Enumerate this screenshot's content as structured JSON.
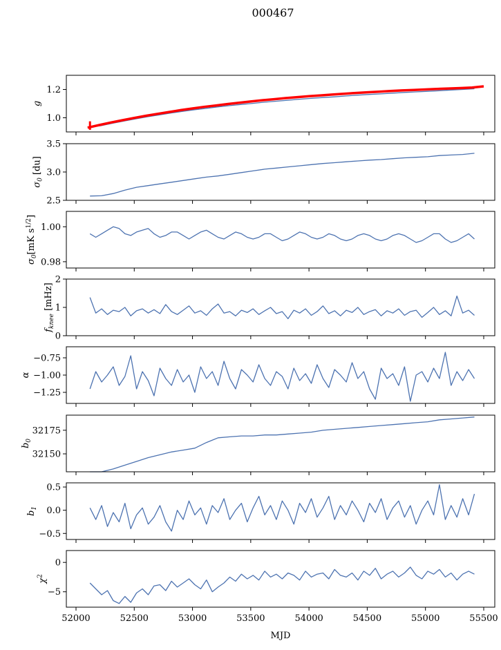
{
  "chart_data": {
    "type": "line",
    "title": "000467",
    "xlabel": "MJD",
    "xlim": [
      51917,
      55595
    ],
    "xticks": [
      52000,
      52500,
      53000,
      53500,
      54000,
      54500,
      55000,
      55500
    ],
    "xtick_labels": [
      "52000",
      "52500",
      "53000",
      "53500",
      "54000",
      "54500",
      "55000",
      "55500"
    ],
    "grid": false,
    "line_color": "#4c72b0",
    "model_color": "#ff0000",
    "smooth_x": {
      "start": 52120,
      "step": 100
    },
    "noisy_x": {
      "start": 52120,
      "step": 50
    },
    "panels": [
      {
        "id": "g",
        "ylabel": {
          "base": "g",
          "sub": "",
          "rest": "",
          "sup": "",
          "rest2": ""
        },
        "ylim": [
          0.9,
          1.3
        ],
        "yticks": [
          1.0,
          1.2
        ],
        "ytick_labels": [
          "1.0",
          "1.2"
        ],
        "x_kind": "smooth",
        "values": [
          0.935,
          0.945,
          0.962,
          0.978,
          0.993,
          1.008,
          1.021,
          1.034,
          1.046,
          1.057,
          1.067,
          1.077,
          1.086,
          1.094,
          1.102,
          1.11,
          1.117,
          1.124,
          1.131,
          1.137,
          1.143,
          1.148,
          1.154,
          1.16,
          1.165,
          1.169,
          1.174,
          1.179,
          1.183,
          1.187,
          1.191,
          1.196,
          1.2,
          1.205
        ],
        "model": {
          "name": "model",
          "x": {
            "start": 52100,
            "step": 100
          },
          "values": [
            0.93,
            0.949,
            0.967,
            0.983,
            0.999,
            1.014,
            1.028,
            1.041,
            1.054,
            1.066,
            1.077,
            1.087,
            1.097,
            1.106,
            1.115,
            1.124,
            1.131,
            1.139,
            1.146,
            1.152,
            1.158,
            1.164,
            1.17,
            1.175,
            1.18,
            1.184,
            1.189,
            1.193,
            1.196,
            1.2,
            1.204,
            1.207,
            1.21,
            1.213,
            1.222
          ],
          "errorbar": {
            "x": 52120,
            "low": 0.915,
            "high": 0.975
          }
        }
      },
      {
        "id": "sigma0-du",
        "ylabel": {
          "base": "σ",
          "sub": "0",
          "rest": " [du]",
          "sup": "",
          "rest2": ""
        },
        "ylim": [
          2.5,
          3.5
        ],
        "yticks": [
          2.5,
          3.0,
          3.5
        ],
        "ytick_labels": [
          "2.5",
          "3.0",
          "3.5"
        ],
        "x_kind": "smooth",
        "values": [
          2.575,
          2.58,
          2.62,
          2.68,
          2.73,
          2.76,
          2.79,
          2.82,
          2.85,
          2.88,
          2.91,
          2.93,
          2.96,
          2.99,
          3.02,
          3.05,
          3.07,
          3.09,
          3.11,
          3.13,
          3.15,
          3.165,
          3.18,
          3.195,
          3.21,
          3.22,
          3.235,
          3.25,
          3.26,
          3.27,
          3.29,
          3.3,
          3.31,
          3.33
        ]
      },
      {
        "id": "sigma0-mk",
        "ylabel": {
          "base": "σ",
          "sub": "0",
          "rest": "[mK s",
          "sup": "1/2",
          "rest2": "]"
        },
        "ylim": [
          0.9764,
          1.0088
        ],
        "yticks": [
          0.98,
          1.0
        ],
        "ytick_labels": [
          "0.98",
          "1.00"
        ],
        "x_kind": "noisy",
        "values": [
          0.996,
          0.994,
          0.996,
          0.998,
          1.0,
          0.999,
          0.996,
          0.995,
          0.997,
          0.998,
          0.999,
          0.996,
          0.994,
          0.995,
          0.997,
          0.997,
          0.995,
          0.993,
          0.995,
          0.997,
          0.998,
          0.996,
          0.994,
          0.993,
          0.995,
          0.997,
          0.996,
          0.994,
          0.993,
          0.994,
          0.996,
          0.996,
          0.994,
          0.992,
          0.993,
          0.995,
          0.997,
          0.996,
          0.994,
          0.993,
          0.994,
          0.996,
          0.995,
          0.993,
          0.992,
          0.993,
          0.995,
          0.996,
          0.995,
          0.993,
          0.992,
          0.993,
          0.995,
          0.996,
          0.995,
          0.993,
          0.991,
          0.992,
          0.994,
          0.996,
          0.996,
          0.993,
          0.991,
          0.992,
          0.994,
          0.996,
          0.993
        ]
      },
      {
        "id": "fknee",
        "ylabel": {
          "base": "f",
          "sub": "knee",
          "rest": " [mHz]",
          "sup": "",
          "rest2": ""
        },
        "ylim": [
          0,
          2
        ],
        "yticks": [
          0,
          1,
          2
        ],
        "ytick_labels": [
          "0",
          "1",
          "2"
        ],
        "x_kind": "noisy",
        "values": [
          1.35,
          0.8,
          0.95,
          0.75,
          0.9,
          0.85,
          1.0,
          0.7,
          0.88,
          0.95,
          0.8,
          0.92,
          0.78,
          1.1,
          0.85,
          0.75,
          0.9,
          1.05,
          0.8,
          0.88,
          0.72,
          0.95,
          1.12,
          0.8,
          0.85,
          0.7,
          0.9,
          0.82,
          0.95,
          0.75,
          0.88,
          1.0,
          0.78,
          0.85,
          0.6,
          0.9,
          0.8,
          0.95,
          0.72,
          0.85,
          1.05,
          0.78,
          0.88,
          0.7,
          0.9,
          0.82,
          1.0,
          0.75,
          0.85,
          0.92,
          0.7,
          0.88,
          0.8,
          0.95,
          0.72,
          0.85,
          0.9,
          0.65,
          0.82,
          1.0,
          0.75,
          0.88,
          0.7,
          1.4,
          0.8,
          0.9,
          0.72
        ]
      },
      {
        "id": "alpha",
        "ylabel": {
          "base": "α",
          "sub": "",
          "rest": "",
          "sup": "",
          "rest2": ""
        },
        "ylim": [
          -1.41,
          -0.59
        ],
        "yticks": [
          -1.25,
          -1.0,
          -0.75
        ],
        "ytick_labels": [
          "−1.25",
          "−1.00",
          "−0.75"
        ],
        "x_kind": "noisy",
        "values": [
          -1.2,
          -0.95,
          -1.1,
          -1.0,
          -0.88,
          -1.15,
          -1.02,
          -0.72,
          -1.2,
          -0.95,
          -1.08,
          -1.3,
          -0.9,
          -1.05,
          -1.15,
          -0.92,
          -1.1,
          -1.0,
          -1.25,
          -0.88,
          -1.05,
          -0.95,
          -1.15,
          -0.8,
          -1.05,
          -1.2,
          -0.92,
          -1.0,
          -1.1,
          -0.85,
          -1.05,
          -1.15,
          -0.95,
          -1.02,
          -1.2,
          -0.9,
          -1.08,
          -0.98,
          -1.12,
          -0.85,
          -1.05,
          -1.18,
          -0.92,
          -1.0,
          -1.1,
          -0.82,
          -1.05,
          -0.95,
          -1.2,
          -1.35,
          -0.9,
          -1.05,
          -0.98,
          -1.15,
          -0.88,
          -1.38,
          -1.0,
          -0.95,
          -1.1,
          -0.9,
          -1.05,
          -0.67,
          -1.15,
          -0.95,
          -1.08,
          -0.92,
          -1.05
        ]
      },
      {
        "id": "b0",
        "ylabel": {
          "base": "b",
          "sub": "0",
          "rest": "",
          "sup": "",
          "rest2": ""
        },
        "ylim": [
          32131,
          32191
        ],
        "yticks": [
          32150,
          32175
        ],
        "ytick_labels": [
          "32150",
          "32175"
        ],
        "x_kind": "smooth",
        "values": [
          32131,
          32131,
          32134,
          32138,
          32142,
          32146,
          32149,
          32152,
          32154,
          32156,
          32162,
          32167,
          32168,
          32169,
          32169,
          32170,
          32170,
          32171,
          32172,
          32173,
          32175,
          32176,
          32177,
          32178,
          32179,
          32180,
          32181,
          32182,
          32183,
          32184,
          32186,
          32187,
          32188,
          32189
        ]
      },
      {
        "id": "b1",
        "ylabel": {
          "base": "b",
          "sub": "1",
          "rest": "",
          "sup": "",
          "rest2": ""
        },
        "ylim": [
          -0.63,
          0.59
        ],
        "yticks": [
          -0.5,
          0.0,
          0.5
        ],
        "ytick_labels": [
          "−0.5",
          "0.0",
          "0.5"
        ],
        "x_kind": "noisy",
        "values": [
          0.05,
          -0.2,
          0.1,
          -0.35,
          -0.05,
          -0.25,
          0.15,
          -0.4,
          -0.1,
          0.05,
          -0.3,
          -0.15,
          0.1,
          -0.25,
          -0.45,
          0.0,
          -0.2,
          0.2,
          -0.1,
          0.05,
          -0.3,
          0.1,
          -0.05,
          0.25,
          -0.2,
          0.0,
          0.15,
          -0.25,
          0.05,
          0.3,
          -0.1,
          0.1,
          -0.2,
          0.2,
          0.0,
          -0.3,
          0.15,
          -0.05,
          0.25,
          -0.15,
          0.05,
          0.3,
          -0.2,
          0.1,
          -0.1,
          0.2,
          0.0,
          -0.25,
          0.15,
          -0.05,
          0.25,
          -0.2,
          0.05,
          0.2,
          -0.15,
          0.1,
          -0.3,
          0.0,
          0.2,
          -0.1,
          0.55,
          -0.2,
          0.1,
          -0.15,
          0.25,
          -0.1,
          0.35
        ]
      },
      {
        "id": "chi2",
        "ylabel": {
          "base": "χ",
          "sub": "",
          "rest": "",
          "sup": "2",
          "rest2": ""
        },
        "ylim": [
          -7.62,
          2.02
        ],
        "yticks": [
          -5,
          0
        ],
        "ytick_labels": [
          "−5",
          "0"
        ],
        "x_kind": "noisy",
        "values": [
          -3.5,
          -4.5,
          -5.5,
          -4.8,
          -6.5,
          -7.0,
          -5.8,
          -6.8,
          -5.2,
          -4.5,
          -5.5,
          -4.0,
          -3.8,
          -4.8,
          -3.2,
          -4.2,
          -3.5,
          -2.8,
          -3.8,
          -4.5,
          -3.0,
          -5.0,
          -4.2,
          -3.5,
          -2.5,
          -3.2,
          -2.0,
          -2.8,
          -2.2,
          -3.0,
          -1.5,
          -2.5,
          -2.0,
          -2.8,
          -1.8,
          -2.2,
          -3.0,
          -1.5,
          -2.5,
          -2.0,
          -1.8,
          -2.8,
          -1.2,
          -2.2,
          -2.5,
          -1.8,
          -3.0,
          -1.5,
          -2.2,
          -1.0,
          -2.8,
          -2.0,
          -1.5,
          -2.5,
          -1.8,
          -0.8,
          -2.2,
          -2.8,
          -1.5,
          -2.0,
          -1.2,
          -2.5,
          -1.8,
          -3.0,
          -2.0,
          -1.5,
          -2.0
        ]
      }
    ]
  }
}
